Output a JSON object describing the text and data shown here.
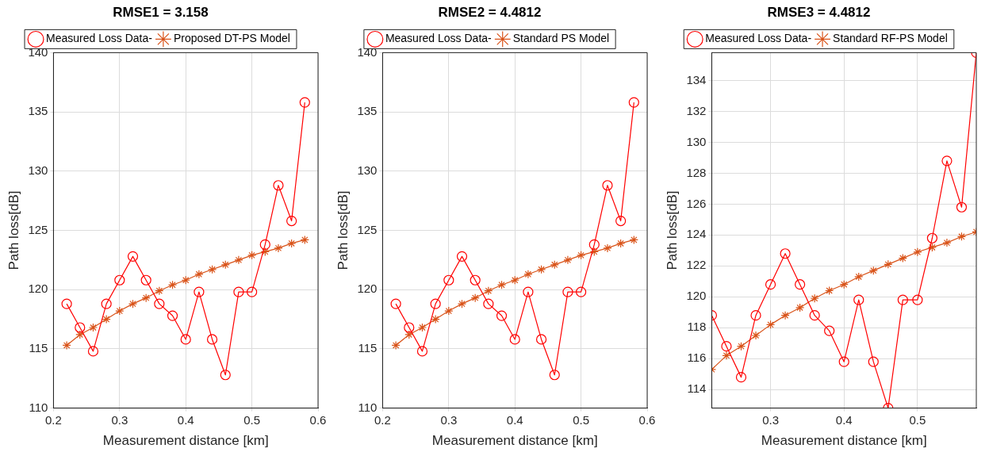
{
  "chart_data": [
    {
      "type": "line",
      "title": "RMSE1 = 3.158",
      "xlabel": "Measurement distance [km]",
      "ylabel": "Path loss[dB]",
      "x": [
        0.22,
        0.24,
        0.26,
        0.28,
        0.3,
        0.32,
        0.34,
        0.36,
        0.38,
        0.4,
        0.42,
        0.44,
        0.46,
        0.48,
        0.5,
        0.52,
        0.54,
        0.56,
        0.58
      ],
      "series": [
        {
          "name": "Measured Loss Data-",
          "color": "#ff0000",
          "marker": "circle",
          "values": [
            118.8,
            116.8,
            114.8,
            118.8,
            120.8,
            122.8,
            120.8,
            118.8,
            117.8,
            115.8,
            119.8,
            115.8,
            112.8,
            119.8,
            119.8,
            123.8,
            128.8,
            125.8,
            135.8
          ]
        },
        {
          "name": "Proposed DT-PS Model",
          "color": "#d95319",
          "marker": "cross",
          "values": [
            115.3,
            116.2,
            116.8,
            117.5,
            118.2,
            118.8,
            119.3,
            119.9,
            120.4,
            120.8,
            121.3,
            121.7,
            122.1,
            122.5,
            122.9,
            123.2,
            123.5,
            123.9,
            124.2
          ]
        }
      ],
      "xlim": [
        0.2,
        0.6
      ],
      "xticks": [
        0.2,
        0.3,
        0.4,
        0.5,
        0.6
      ],
      "ylim": [
        110,
        140
      ],
      "yticks": [
        110,
        115,
        120,
        125,
        130,
        135,
        140
      ],
      "grid": true,
      "legend": "top",
      "line_style": "solid"
    },
    {
      "type": "line",
      "title": "RMSE2 = 4.4812",
      "xlabel": "Measurement distance [km]",
      "ylabel": "Path loss[dB]",
      "x": [
        0.22,
        0.24,
        0.26,
        0.28,
        0.3,
        0.32,
        0.34,
        0.36,
        0.38,
        0.4,
        0.42,
        0.44,
        0.46,
        0.48,
        0.5,
        0.52,
        0.54,
        0.56,
        0.58
      ],
      "series": [
        {
          "name": "Measured Loss Data-",
          "color": "#ff0000",
          "marker": "circle",
          "values": [
            118.8,
            116.8,
            114.8,
            118.8,
            120.8,
            122.8,
            120.8,
            118.8,
            117.8,
            115.8,
            119.8,
            115.8,
            112.8,
            119.8,
            119.8,
            123.8,
            128.8,
            125.8,
            135.8
          ]
        },
        {
          "name": "Standard PS Model",
          "color": "#d95319",
          "marker": "cross",
          "values": [
            115.3,
            116.2,
            116.8,
            117.5,
            118.2,
            118.8,
            119.3,
            119.9,
            120.4,
            120.8,
            121.3,
            121.7,
            122.1,
            122.5,
            122.9,
            123.2,
            123.5,
            123.9,
            124.2
          ]
        }
      ],
      "xlim": [
        0.2,
        0.6
      ],
      "xticks": [
        0.2,
        0.3,
        0.4,
        0.5,
        0.6
      ],
      "ylim": [
        110,
        140
      ],
      "yticks": [
        110,
        115,
        120,
        125,
        130,
        135,
        140
      ],
      "grid": true,
      "legend": "top",
      "line_style": "solid"
    },
    {
      "type": "line",
      "title": "RMSE3 = 4.4812",
      "xlabel": "Measurement distance [km]",
      "ylabel": "Path loss[dB]",
      "x": [
        0.22,
        0.24,
        0.26,
        0.28,
        0.3,
        0.32,
        0.34,
        0.36,
        0.38,
        0.4,
        0.42,
        0.44,
        0.46,
        0.48,
        0.5,
        0.52,
        0.54,
        0.56,
        0.58
      ],
      "series": [
        {
          "name": "Measured Loss Data-",
          "color": "#ff0000",
          "marker": "circle",
          "values": [
            118.8,
            116.8,
            114.8,
            118.8,
            120.8,
            122.8,
            120.8,
            118.8,
            117.8,
            115.8,
            119.8,
            115.8,
            112.8,
            119.8,
            119.8,
            123.8,
            128.8,
            125.8,
            135.8
          ]
        },
        {
          "name": "Standard RF-PS Model",
          "color": "#d95319",
          "marker": "cross",
          "values": [
            115.3,
            116.2,
            116.8,
            117.5,
            118.2,
            118.8,
            119.3,
            119.9,
            120.4,
            120.8,
            121.3,
            121.7,
            122.1,
            122.5,
            122.9,
            123.2,
            123.5,
            123.9,
            124.2
          ]
        }
      ],
      "xlim": [
        0.22,
        0.58
      ],
      "xticks": [
        0.3,
        0.4,
        0.5
      ],
      "ylim": [
        112.8,
        135.8
      ],
      "yticks": [
        114,
        116,
        118,
        120,
        122,
        124,
        126,
        128,
        130,
        132,
        134
      ],
      "grid": true,
      "legend": "top",
      "line_style": "solid"
    }
  ]
}
